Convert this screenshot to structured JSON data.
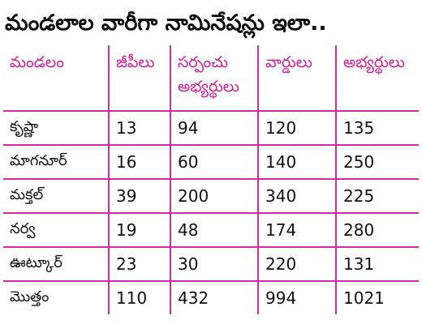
{
  "headline": "మండలాల వారీగా నామినేషన్లు ఇలా..",
  "table": {
    "headers": [
      "మండలం",
      "జీపీలు",
      "సర్పంచు అభ్యర్థులు",
      "వార్డులు",
      "అభ్యర్థులు"
    ],
    "rows": [
      [
        "కృష్ణా",
        "13",
        "94",
        "120",
        "135"
      ],
      [
        "మాగనూర్",
        "16",
        "60",
        "140",
        "250"
      ],
      [
        "మక్తల్",
        "39",
        "200",
        "340",
        "225"
      ],
      [
        "నర్వ",
        "19",
        "48",
        "174",
        "280"
      ],
      [
        "ఊట్కూర్",
        "23",
        "30",
        "220",
        "131"
      ],
      [
        "మొత్తం",
        "110",
        "432",
        "994",
        "1021"
      ]
    ]
  },
  "colors": {
    "header_text": "#cc1f97",
    "grid_lines": "#d52aa3",
    "body_text": "#111111"
  }
}
